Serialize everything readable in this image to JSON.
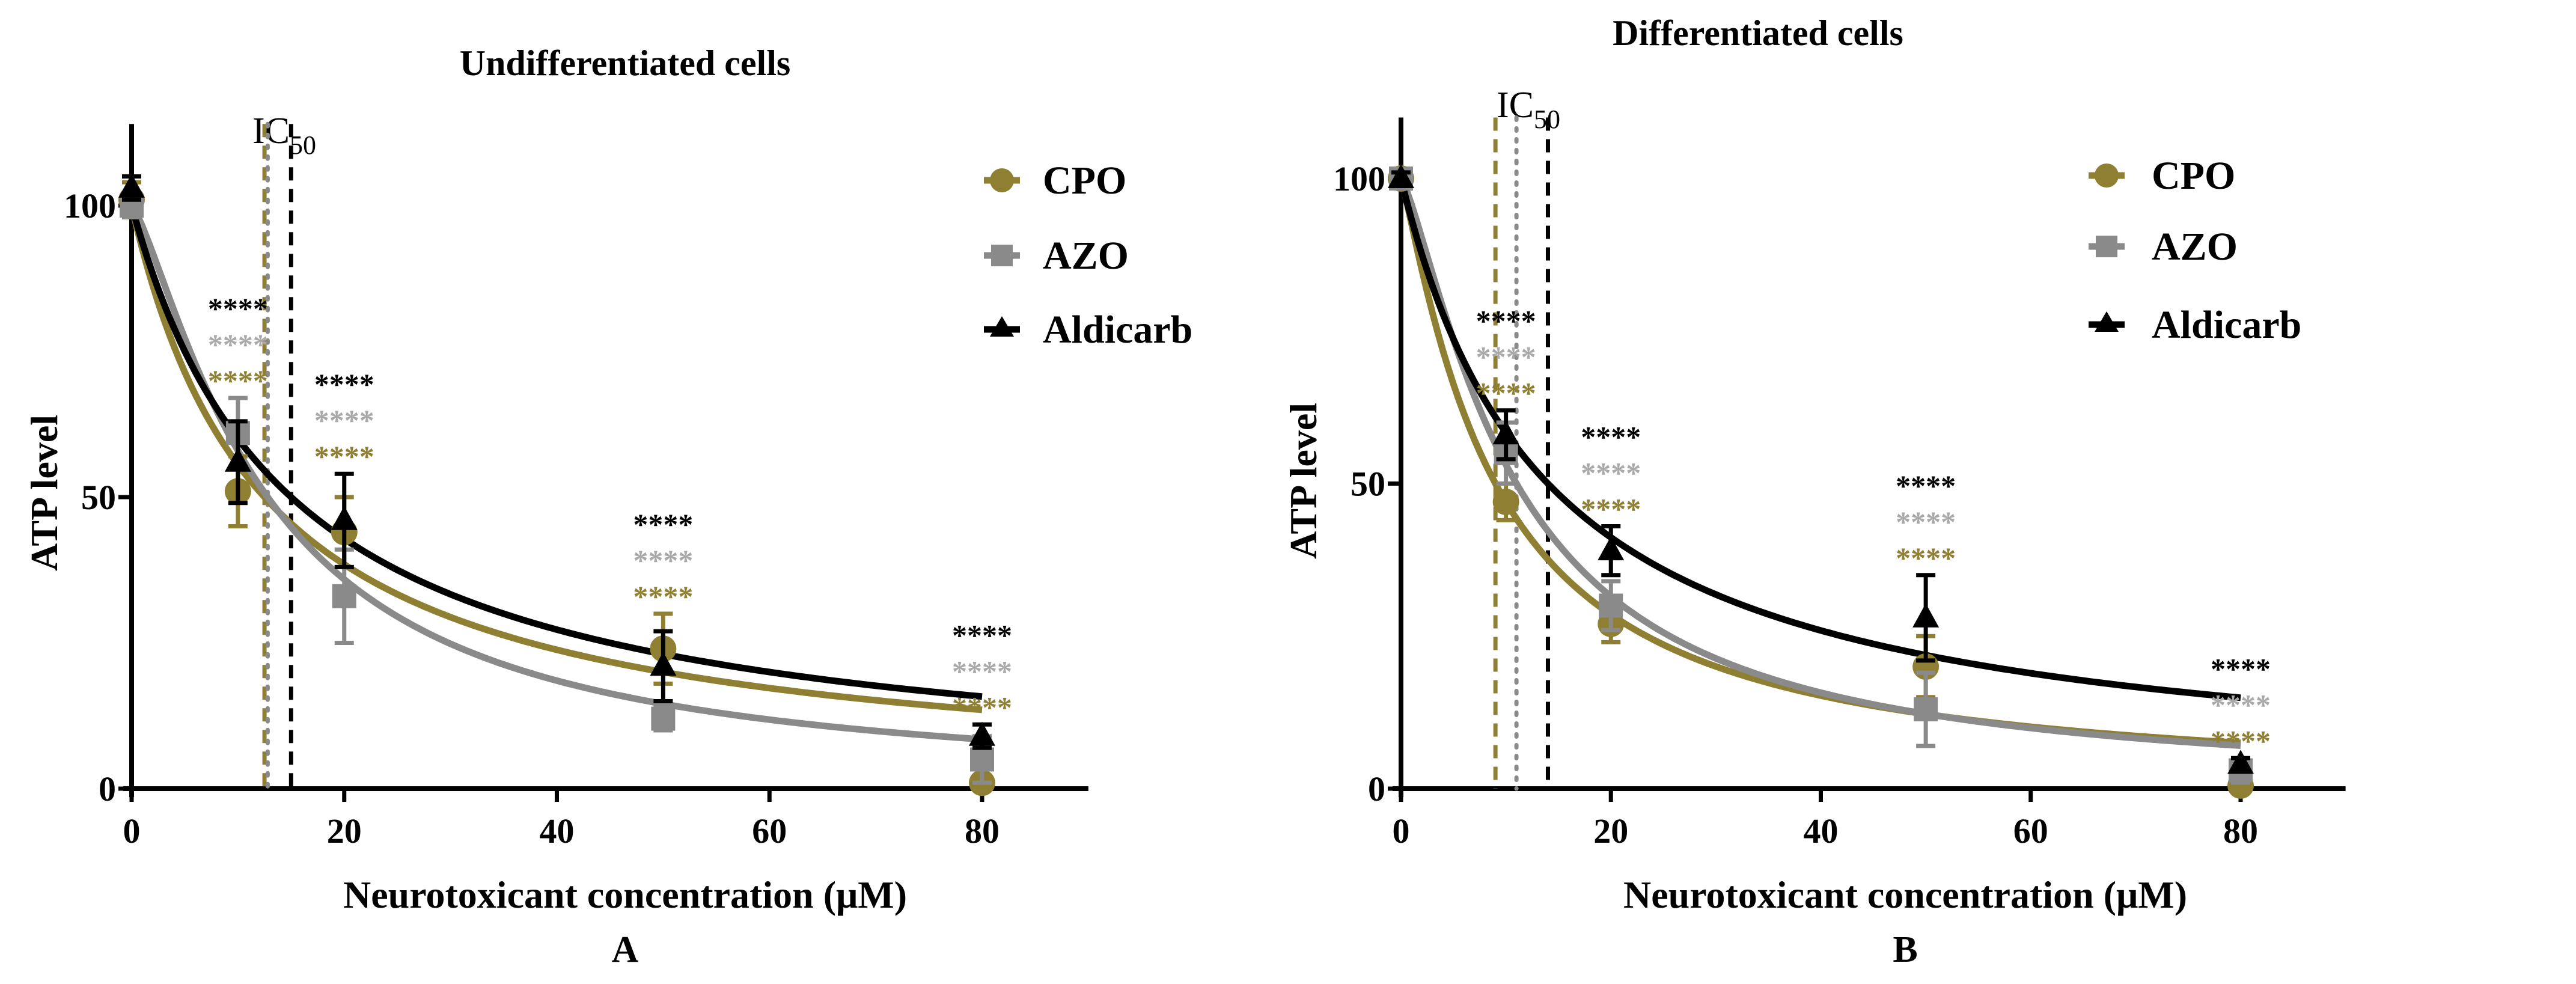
{
  "chart_data": [
    {
      "type": "line",
      "panel_label": "A",
      "title": "Undifferentiated cells",
      "xlabel": "Neurotoxicant concentration (μM)",
      "ylabel": "ATP level",
      "xlim": [
        0,
        90
      ],
      "ylim": [
        0,
        114
      ],
      "xticks": [
        "0",
        "20",
        "40",
        "60",
        "80"
      ],
      "yticks": [
        "0",
        "50",
        "100"
      ],
      "ic50_label": "IC",
      "ic50_sub": "50",
      "legend_position": "top-right",
      "series": [
        {
          "name": "CPO",
          "color": "#8f7f33",
          "marker": "circle",
          "x": [
            0,
            10,
            20,
            50,
            80
          ],
          "y": [
            101,
            51,
            44,
            24,
            1
          ],
          "err": [
            3,
            6,
            6,
            6,
            1
          ],
          "ic50": 12.5,
          "hill": 1.0,
          "stars": [
            "",
            "****",
            "****",
            "****",
            "****"
          ]
        },
        {
          "name": "AZO",
          "color": "#8a8a8a",
          "marker": "square",
          "x": [
            0,
            10,
            20,
            50,
            80
          ],
          "y": [
            100,
            61,
            33,
            12,
            5
          ],
          "err": [
            2,
            6,
            8,
            2,
            4
          ],
          "ic50": 12.8,
          "hill": 1.3,
          "stars": [
            "",
            "****",
            "****",
            "****",
            "****"
          ]
        },
        {
          "name": "Aldicarb",
          "color": "#000000",
          "marker": "triangle",
          "x": [
            0,
            10,
            20,
            50,
            80
          ],
          "y": [
            103,
            56,
            46,
            21,
            9
          ],
          "err": [
            2,
            7,
            8,
            6,
            2
          ],
          "ic50": 15,
          "hill": 1.0,
          "stars": [
            "",
            "****",
            "****",
            "****",
            "****"
          ]
        }
      ]
    },
    {
      "type": "line",
      "panel_label": "B",
      "title": "Differentiated cells",
      "xlabel": "Neurotoxicant concentration (μM)",
      "ylabel": "ATP level",
      "xlim": [
        0,
        90
      ],
      "ylim": [
        0,
        110
      ],
      "xticks": [
        "0",
        "20",
        "40",
        "60",
        "80"
      ],
      "yticks": [
        "0",
        "50",
        "100"
      ],
      "ic50_label": "IC",
      "ic50_sub": "50",
      "legend_position": "top-right",
      "series": [
        {
          "name": "CPO",
          "color": "#8f7f33",
          "marker": "circle",
          "x": [
            0,
            10,
            20,
            50,
            80
          ],
          "y": [
            100,
            47,
            27,
            20,
            0.5
          ],
          "err": [
            1,
            3,
            3,
            5,
            1
          ],
          "ic50": 9,
          "hill": 1.15,
          "stars": [
            "",
            "****",
            "****",
            "****",
            "****"
          ]
        },
        {
          "name": "AZO",
          "color": "#8a8a8a",
          "marker": "square",
          "x": [
            0,
            10,
            20,
            50,
            80
          ],
          "y": [
            100,
            55,
            30,
            13,
            3
          ],
          "err": [
            1,
            5,
            4,
            6,
            2
          ],
          "ic50": 11,
          "hill": 1.3,
          "stars": [
            "",
            "****",
            "****",
            "****",
            "****"
          ]
        },
        {
          "name": "Aldicarb",
          "color": "#000000",
          "marker": "triangle",
          "x": [
            0,
            10,
            20,
            50,
            80
          ],
          "y": [
            100,
            58,
            39,
            28,
            4
          ],
          "err": [
            1,
            4,
            4,
            7,
            1
          ],
          "ic50": 14,
          "hill": 1.0,
          "stars": [
            "",
            "****",
            "****",
            "****",
            "****"
          ]
        }
      ]
    }
  ]
}
